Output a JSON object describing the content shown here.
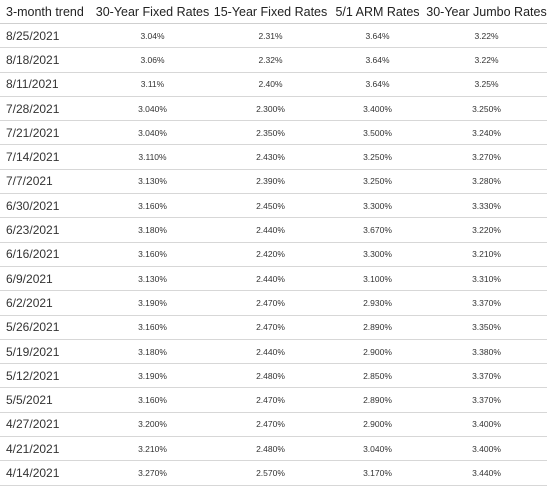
{
  "columns": [
    "3-month trend",
    "30-Year Fixed Rates",
    "15-Year Fixed Rates",
    "5/1 ARM Rates",
    "30-Year Jumbo Rates"
  ],
  "rows": [
    [
      "8/25/2021",
      "3.04%",
      "2.31%",
      "3.64%",
      "3.22%"
    ],
    [
      "8/18/2021",
      "3.06%",
      "2.32%",
      "3.64%",
      "3.22%"
    ],
    [
      "8/11/2021",
      "3.11%",
      "2.40%",
      "3.64%",
      "3.25%"
    ],
    [
      "7/28/2021",
      "3.040%",
      "2.300%",
      "3.400%",
      "3.250%"
    ],
    [
      "7/21/2021",
      "3.040%",
      "2.350%",
      "3.500%",
      "3.240%"
    ],
    [
      "7/14/2021",
      "3.110%",
      "2.430%",
      "3.250%",
      "3.270%"
    ],
    [
      "7/7/2021",
      "3.130%",
      "2.390%",
      "3.250%",
      "3.280%"
    ],
    [
      "6/30/2021",
      "3.160%",
      "2.450%",
      "3.300%",
      "3.330%"
    ],
    [
      "6/23/2021",
      "3.180%",
      "2.440%",
      "3.670%",
      "3.220%"
    ],
    [
      "6/16/2021",
      "3.160%",
      "2.420%",
      "3.300%",
      "3.210%"
    ],
    [
      "6/9/2021",
      "3.130%",
      "2.440%",
      "3.100%",
      "3.310%"
    ],
    [
      "6/2/2021",
      "3.190%",
      "2.470%",
      "2.930%",
      "3.370%"
    ],
    [
      "5/26/2021",
      "3.160%",
      "2.470%",
      "2.890%",
      "3.350%"
    ],
    [
      "5/19/2021",
      "3.180%",
      "2.440%",
      "2.900%",
      "3.380%"
    ],
    [
      "5/12/2021",
      "3.190%",
      "2.480%",
      "2.850%",
      "3.370%"
    ],
    [
      "5/5/2021",
      "3.160%",
      "2.470%",
      "2.890%",
      "3.370%"
    ],
    [
      "4/27/2021",
      "3.200%",
      "2.470%",
      "2.900%",
      "3.400%"
    ],
    [
      "4/21/2021",
      "3.210%",
      "2.480%",
      "3.040%",
      "3.400%"
    ],
    [
      "4/14/2021",
      "3.270%",
      "2.570%",
      "3.170%",
      "3.440%"
    ]
  ]
}
